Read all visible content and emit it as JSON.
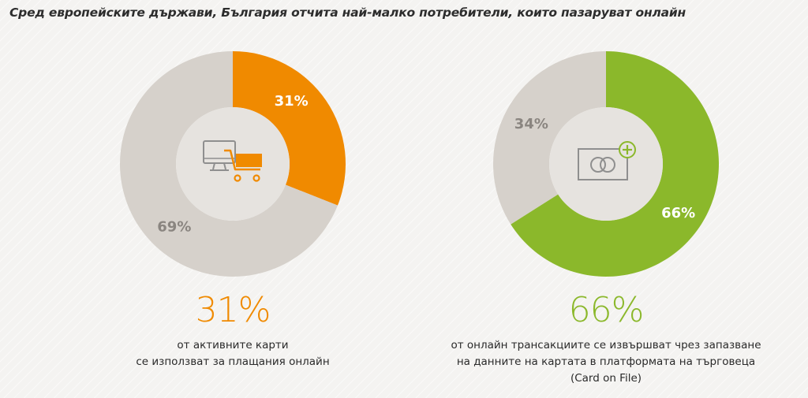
{
  "title": "Сред европейските държави, България отчита най-малко потребители, които пазаруват онлайн",
  "colors": {
    "orange": "#f08a00",
    "green": "#8bb82b",
    "gray": "#d6d1cb",
    "hole": "#e6e3df",
    "label_gray": "#8a8580",
    "icon_gray": "#8f8f8f"
  },
  "chart_data": [
    {
      "type": "pie",
      "variant": "donut",
      "center_icon": "shopping-cart-monitor-icon",
      "slices": [
        {
          "label": "31%",
          "value": 31,
          "color": "#f08a00",
          "label_color": "#ffffff"
        },
        {
          "label": "69%",
          "value": 69,
          "color": "#d6d1cb",
          "label_color": "#8a8580"
        }
      ],
      "headline": "31%",
      "caption": [
        "от активните карти",
        "се използват за плащания онлайн"
      ]
    },
    {
      "type": "pie",
      "variant": "donut",
      "center_icon": "card-add-icon",
      "slices": [
        {
          "label": "66%",
          "value": 66,
          "color": "#8bb82b",
          "label_color": "#ffffff"
        },
        {
          "label": "34%",
          "value": 34,
          "color": "#d6d1cb",
          "label_color": "#8a8580"
        }
      ],
      "headline": "66%",
      "caption": [
        "от онлайн трансакциите се извършват чрез запазване",
        "на данните на картата в платформата на търговеца",
        "(Card on File)"
      ]
    }
  ]
}
